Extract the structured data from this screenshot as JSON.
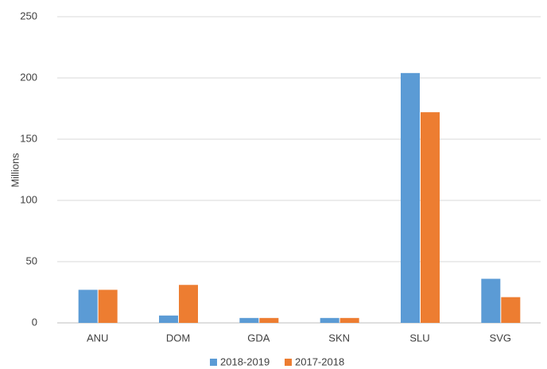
{
  "chart_data": {
    "type": "bar",
    "y_label": "Millions",
    "categories": [
      "ANU",
      "DOM",
      "GDA",
      "SKN",
      "SLU",
      "SVG"
    ],
    "series": [
      {
        "name": "2018-2019",
        "color": "#5b9bd5",
        "values": [
          27,
          6,
          4,
          4,
          204,
          36
        ]
      },
      {
        "name": "2017-2018",
        "color": "#ed7d31",
        "values": [
          27,
          31,
          4,
          4,
          172,
          21
        ]
      }
    ],
    "ylim": [
      0,
      250
    ],
    "yticks": [
      0,
      50,
      100,
      150,
      200,
      250
    ],
    "grid": true,
    "legend": "bottom"
  }
}
